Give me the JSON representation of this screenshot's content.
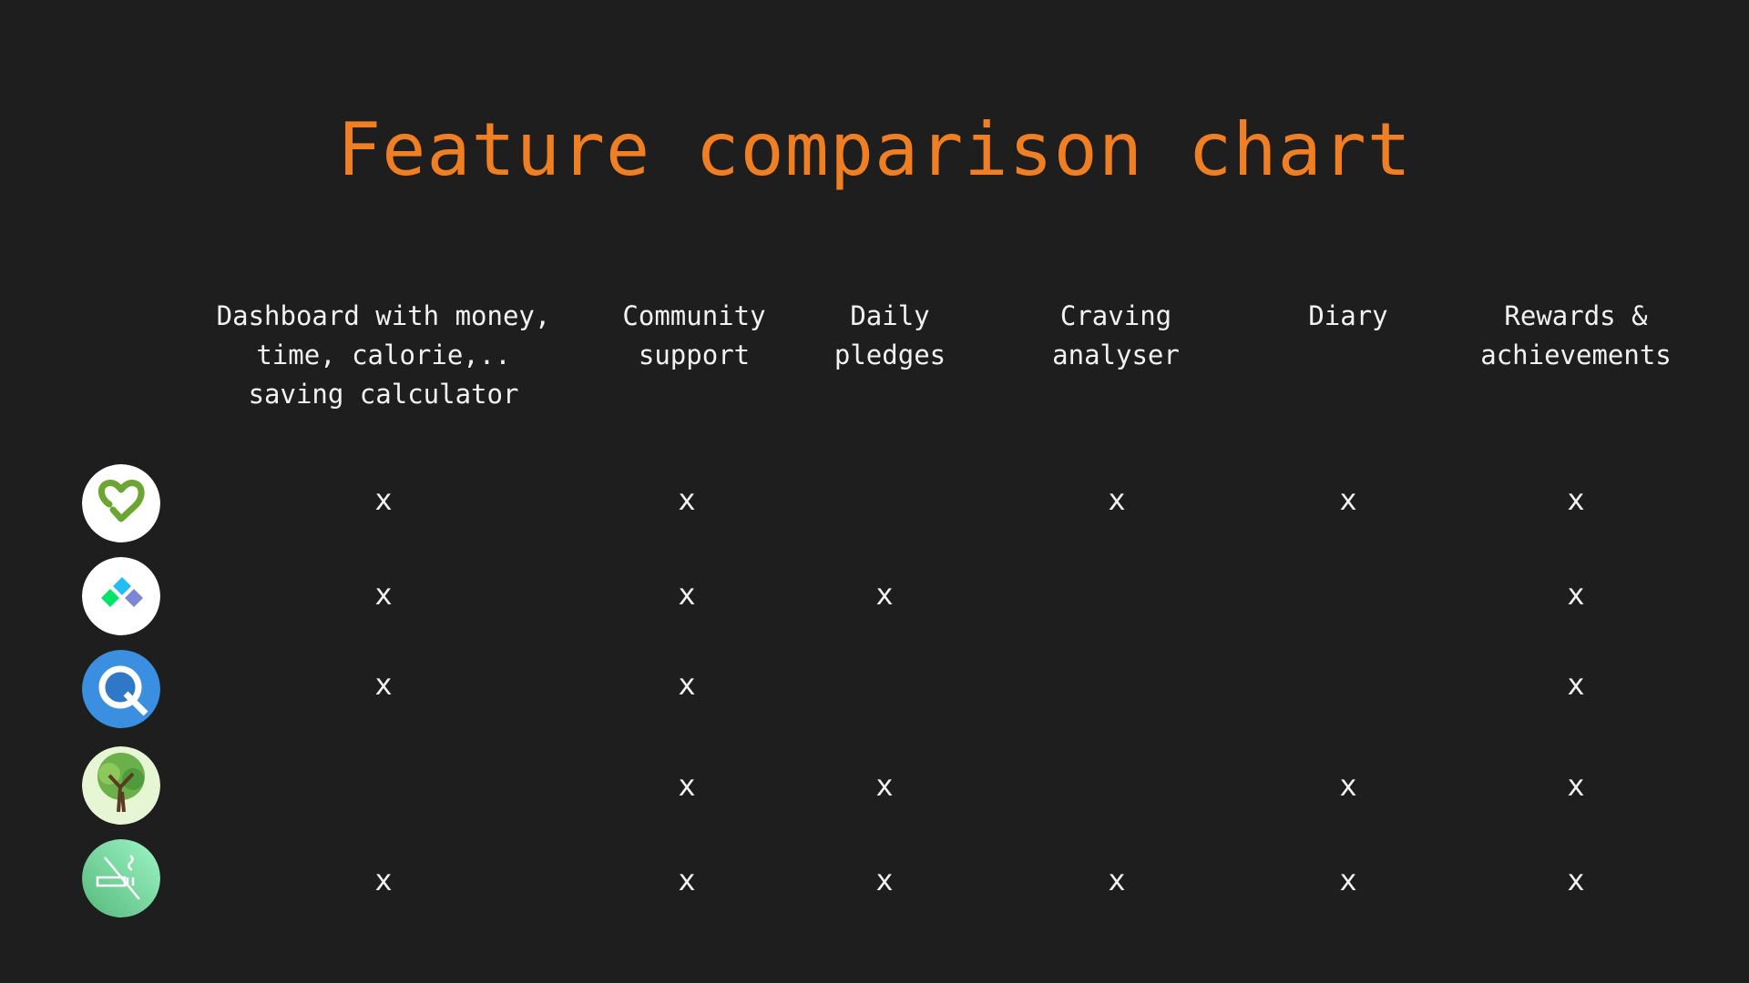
{
  "title": "Feature comparison chart",
  "columns": [
    "Dashboard with money,\ntime, calorie,..\nsaving calculator",
    "Community\nsupport",
    "Daily\npledges",
    "Craving\nanalyser",
    "Diary",
    "Rewards &\nachievements"
  ],
  "mark": "x",
  "rows": [
    {
      "icon": "heart-check-icon",
      "features": [
        true,
        true,
        false,
        true,
        true,
        true
      ]
    },
    {
      "icon": "diamond-tiles-icon",
      "features": [
        true,
        true,
        true,
        false,
        false,
        true
      ]
    },
    {
      "icon": "q-cigarette-icon",
      "features": [
        true,
        true,
        false,
        false,
        false,
        true
      ]
    },
    {
      "icon": "tree-icon",
      "features": [
        false,
        true,
        true,
        false,
        true,
        true
      ]
    },
    {
      "icon": "no-smoking-icon",
      "features": [
        true,
        true,
        true,
        true,
        true,
        true
      ]
    }
  ],
  "colors": {
    "background": "#1e1e1e",
    "title": "#ef7f22",
    "text": "#f2f2f2"
  }
}
